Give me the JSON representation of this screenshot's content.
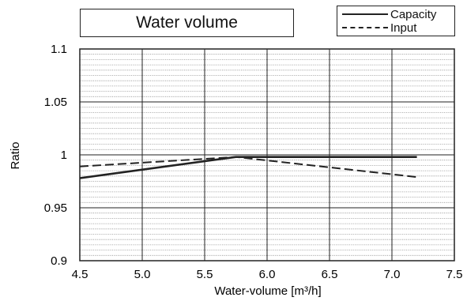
{
  "chart_data": {
    "type": "line",
    "title": "Water volume",
    "xlabel": "Water-volume [m³/h]",
    "ylabel": "Ratio",
    "xlim": [
      4.5,
      7.5
    ],
    "ylim": [
      0.9,
      1.1
    ],
    "x_ticks": [
      "4.5",
      "5.0",
      "5.5",
      "6.0",
      "6.5",
      "7.0",
      "7.5"
    ],
    "y_ticks": [
      "0.9",
      "0.95",
      "1",
      "1.05",
      "1.1"
    ],
    "grid": true,
    "legend_position": "top-right",
    "series": [
      {
        "name": "Capacity",
        "style": "solid",
        "x": [
          4.5,
          5.75,
          7.2
        ],
        "y": [
          0.978,
          0.998,
          0.998
        ]
      },
      {
        "name": "Input",
        "style": "dashed",
        "x": [
          4.5,
          5.75,
          7.2
        ],
        "y": [
          0.989,
          0.998,
          0.979
        ]
      }
    ],
    "colors": {
      "line": "#222222",
      "grid_major": "#222222",
      "grid_minor": "#9a9a9a"
    }
  }
}
